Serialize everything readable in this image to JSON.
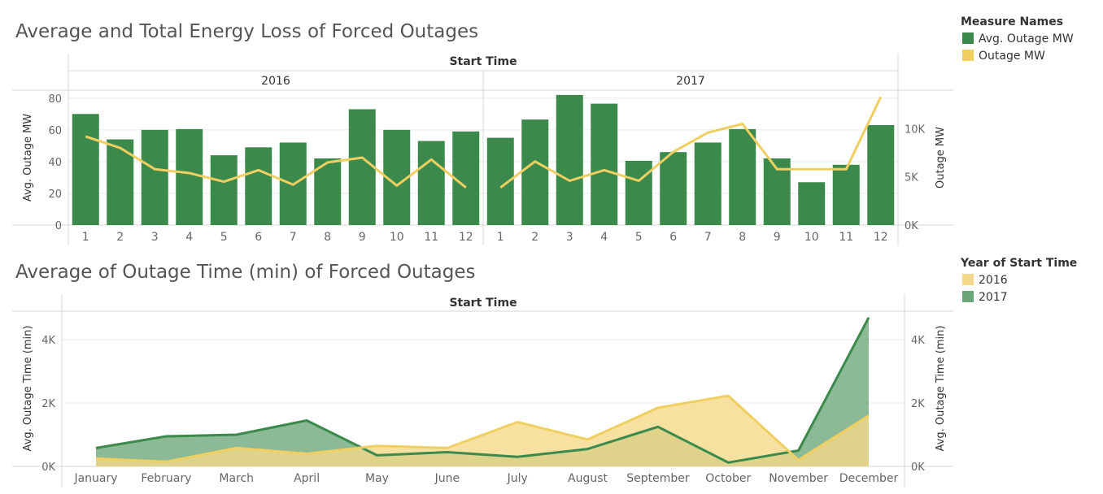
{
  "colors": {
    "green": "#3b8a4c",
    "green_area": "#78ad84",
    "yellow": "#efcf62",
    "yellow_area": "#f4d98a",
    "text": "#333333",
    "axis_text": "#555555",
    "tick_text": "#666666",
    "grid": "#ebebeb",
    "rule": "#d7d7d7"
  },
  "legends": [
    {
      "title": "Measure Names",
      "items": [
        {
          "label": "Avg. Outage MW",
          "color": "#3b8a4c"
        },
        {
          "label": "Outage MW",
          "color": "#efcf62"
        }
      ]
    },
    {
      "title": "Year of Start Time",
      "items": [
        {
          "label": "2016",
          "color": "#f4d98a"
        },
        {
          "label": "2017",
          "color": "#6aa778"
        }
      ]
    }
  ],
  "chart_data": [
    {
      "type": "bar",
      "title": "Average and Total Energy Loss of Forced Outages",
      "column_header": "Start Time",
      "panels": [
        "2016",
        "2017"
      ],
      "categories": [
        "1",
        "2",
        "3",
        "4",
        "5",
        "6",
        "7",
        "8",
        "9",
        "10",
        "11",
        "12"
      ],
      "series": [
        {
          "name": "Avg. Outage MW",
          "type": "bar",
          "axis": "left",
          "values": [
            [
              70,
              54,
              60,
              60.5,
              44,
              49,
              52,
              42,
              73,
              60,
              53,
              59
            ],
            [
              55,
              66.5,
              82,
              76.5,
              40.5,
              46,
              52,
              60.5,
              42,
              27,
              38,
              63
            ]
          ]
        },
        {
          "name": "Outage MW",
          "type": "line",
          "axis": "right",
          "values": [
            [
              9200,
              8000,
              5800,
              5400,
              4500,
              5700,
              4200,
              6500,
              7000,
              4100,
              6800,
              3900
            ],
            [
              3900,
              6600,
              4600,
              5700,
              4600,
              7600,
              9600,
              10500,
              5800,
              5800,
              5800,
              13300
            ]
          ]
        }
      ],
      "ylabel_left": "Avg. Outage MW",
      "ylabel_right": "Outage MW",
      "yticks_left": [
        "0",
        "20",
        "40",
        "60",
        "80"
      ],
      "yticks_right": [
        "0K",
        "5K",
        "10K"
      ],
      "ylim_left": [
        0,
        85
      ],
      "ylim_right": [
        0,
        14000
      ],
      "grid": true
    },
    {
      "type": "area",
      "title": "Average of Outage Time (min) of Forced Outages",
      "column_header": "Start Time",
      "categories": [
        "January",
        "February",
        "March",
        "April",
        "May",
        "June",
        "July",
        "August",
        "September",
        "October",
        "November",
        "December"
      ],
      "series": [
        {
          "name": "2016",
          "values": [
            250,
            150,
            580,
            400,
            650,
            580,
            1400,
            850,
            1850,
            2230,
            200,
            1600
          ]
        },
        {
          "name": "2017",
          "values": [
            580,
            950,
            1000,
            1450,
            350,
            450,
            300,
            550,
            1250,
            120,
            500,
            4700
          ]
        }
      ],
      "ylabel": "Avg. Outage Time (min)",
      "yticks": [
        "0K",
        "2K",
        "4K"
      ],
      "ylim": [
        0,
        4900
      ],
      "grid": true
    }
  ]
}
